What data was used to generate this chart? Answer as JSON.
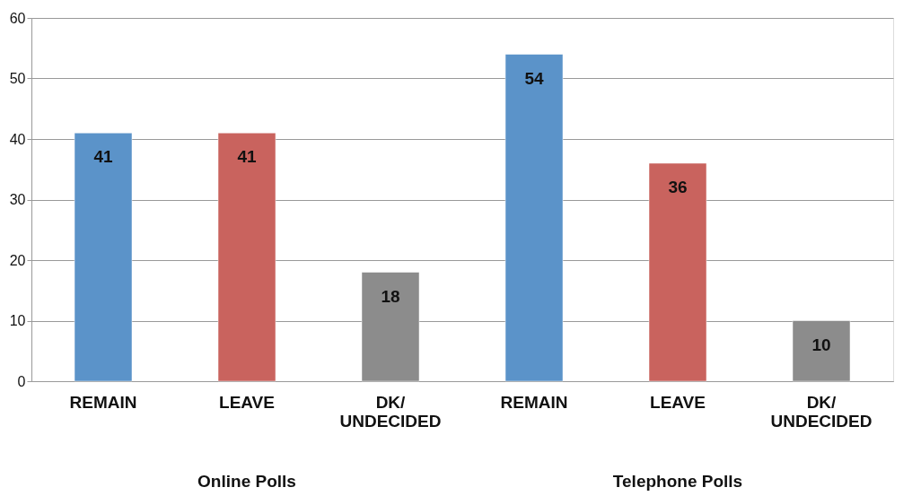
{
  "chart_data": {
    "type": "bar",
    "categories": [
      "REMAIN",
      "LEAVE",
      "DK/UNDECIDED",
      "REMAIN",
      "LEAVE",
      "DK/UNDECIDED"
    ],
    "values": [
      41,
      41,
      18,
      54,
      36,
      10
    ],
    "colors": [
      "#5b93c9",
      "#c9635e",
      "#8c8c8c",
      "#5b93c9",
      "#c9635e",
      "#8c8c8c"
    ],
    "annotations": [
      "Online Polls",
      "Telephone Polls"
    ],
    "ylim": [
      0,
      60
    ],
    "yticks": [
      0,
      10,
      20,
      30,
      40,
      50,
      60
    ],
    "grid": "y",
    "data_labels": true,
    "legend": false
  }
}
